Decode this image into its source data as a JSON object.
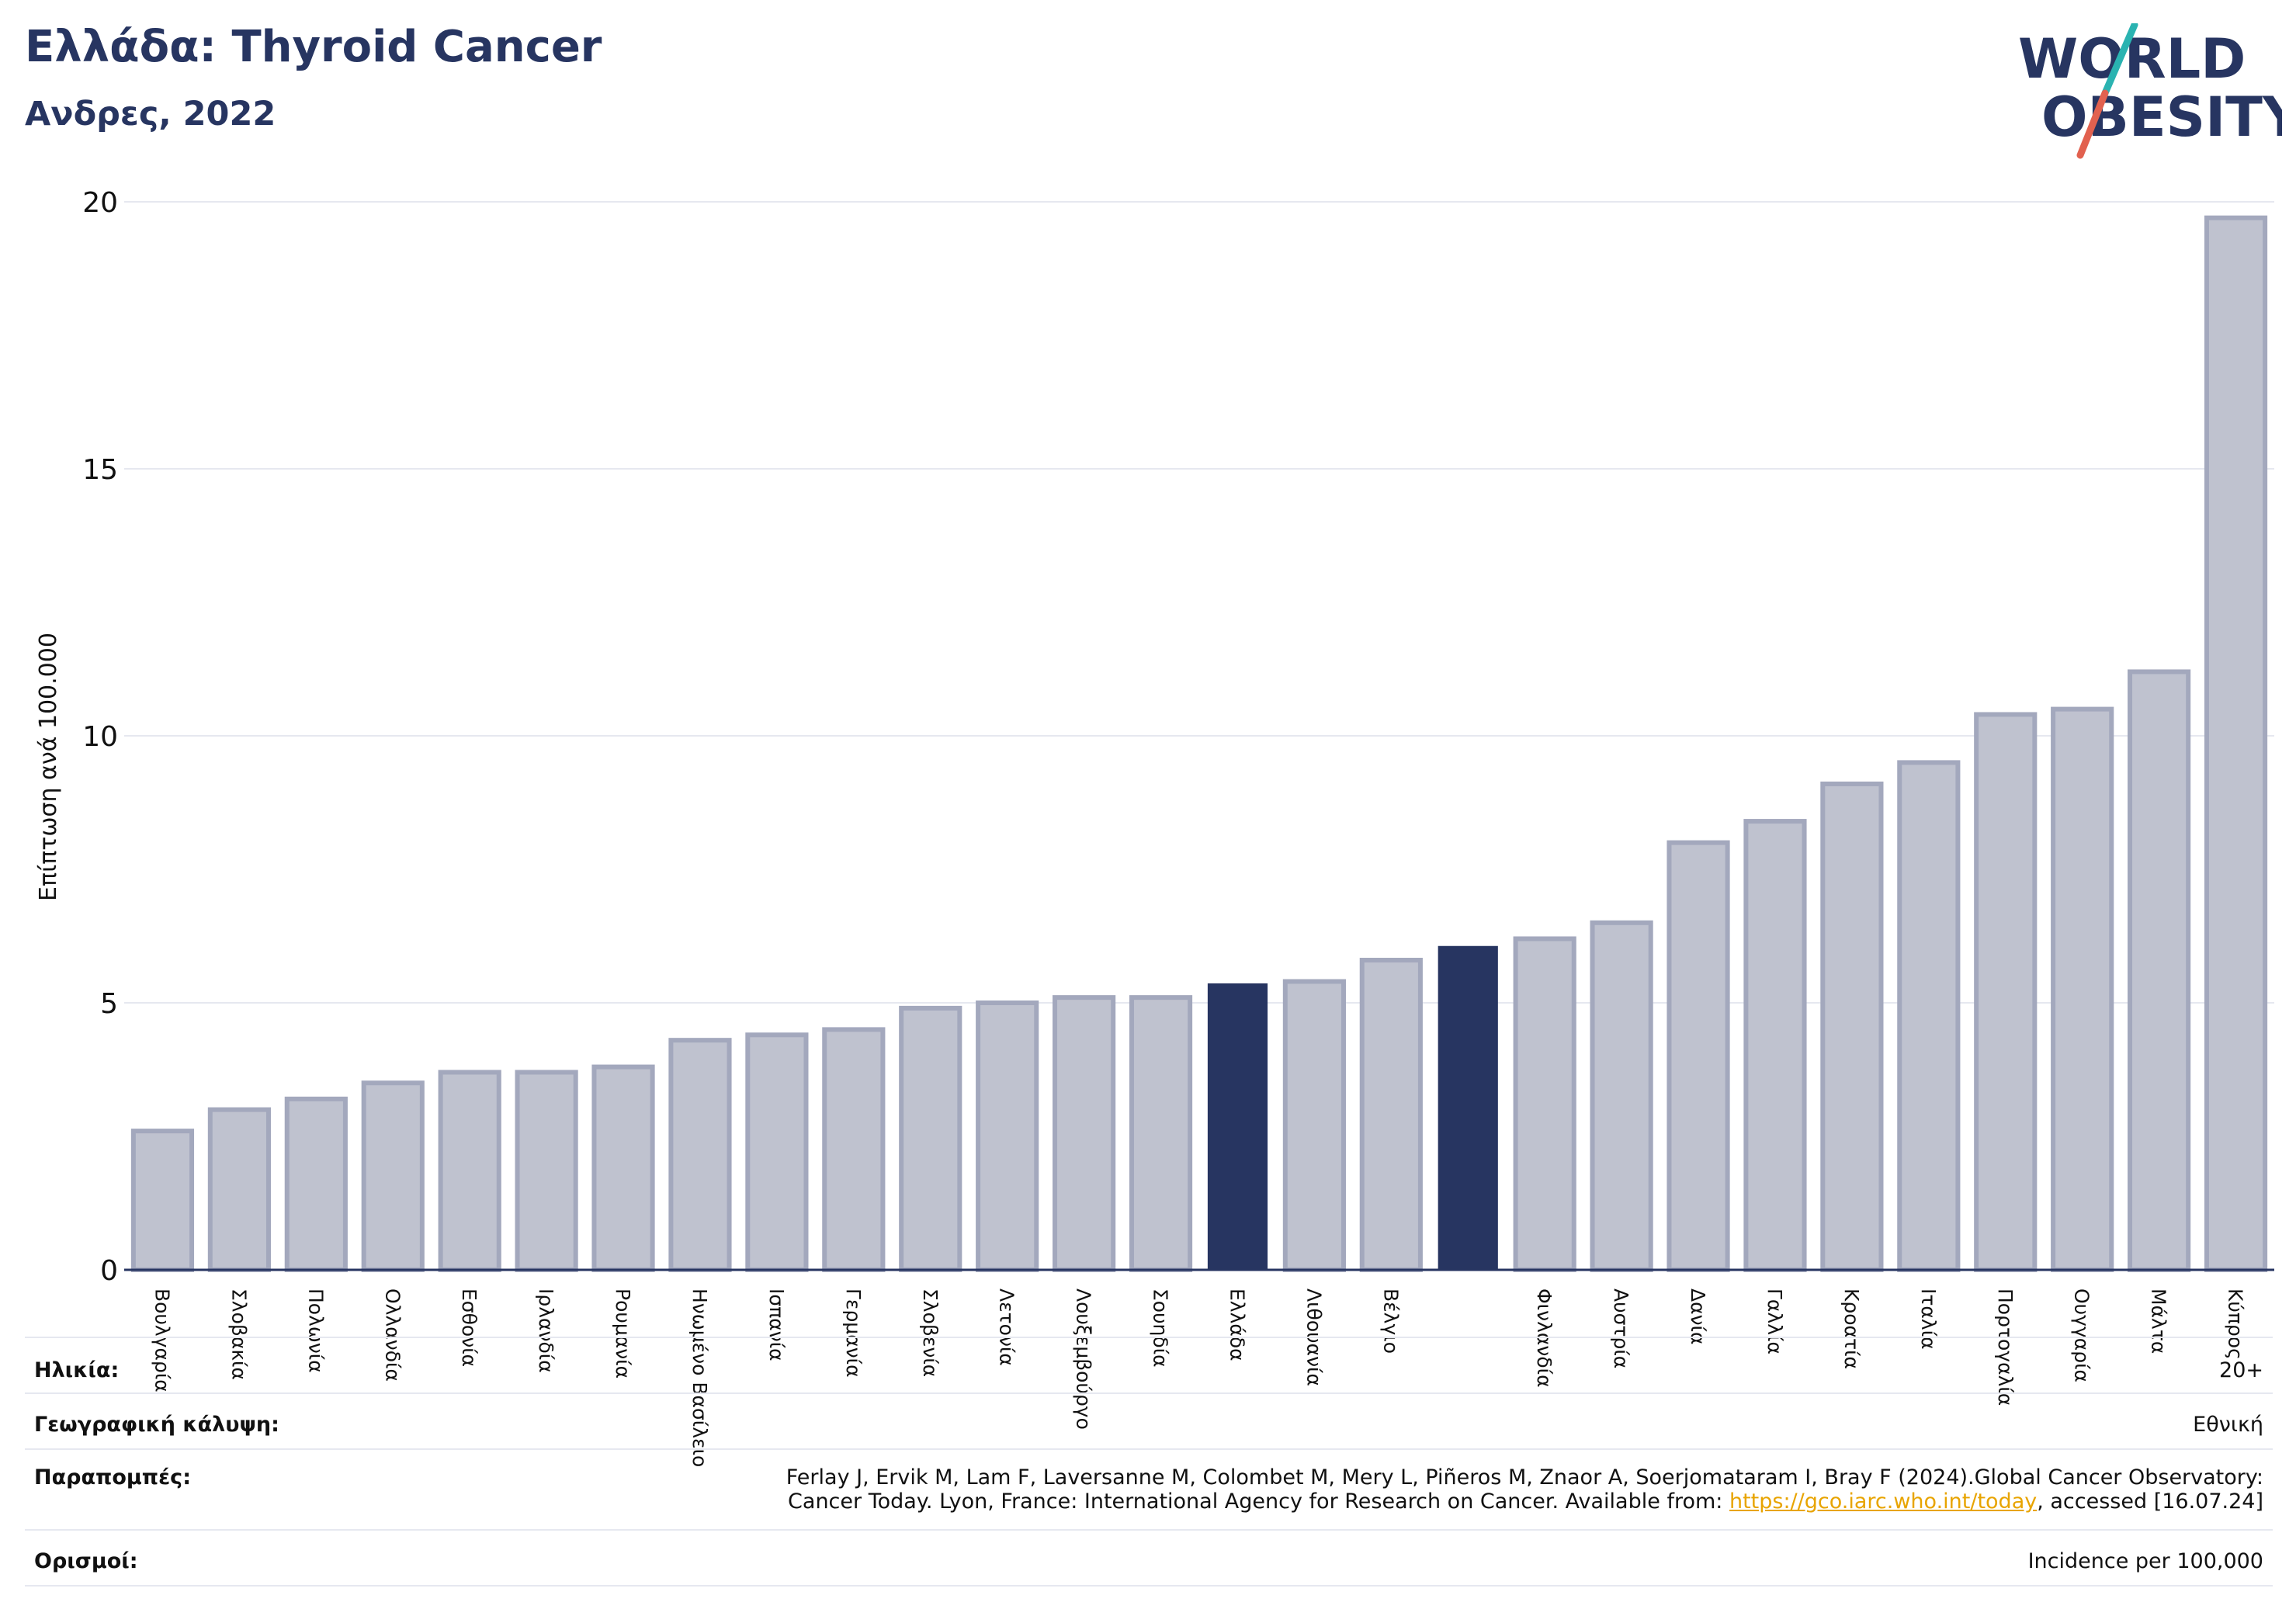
{
  "header": {
    "title": "Ελλάδα: Thyroid Cancer",
    "subtitle": "Ανδρες, 2022"
  },
  "logo": {
    "line1": "WORLD",
    "line2": "OBESITY",
    "colors": {
      "text": "#273561",
      "slash_top": "#2ab3b1",
      "slash_bottom": "#e2614f"
    }
  },
  "colors": {
    "bar_default": "#bfc2cf",
    "bar_default_border": "#a3a8bd",
    "bar_highlight": "#273561",
    "grid": "#e6e8f0",
    "axis": "#273561"
  },
  "chart_data": {
    "type": "bar",
    "ylabel": "Επίπτωση ανά 100.000",
    "xlabel": "",
    "ylim": [
      0,
      20
    ],
    "yticks": [
      0,
      5,
      10,
      15,
      20
    ],
    "grid": true,
    "categories": [
      "Βουλγαρία",
      "Σλοβακία",
      "Πολωνία",
      "Ολλανδία",
      "Εσθονία",
      "Ιρλανδία",
      "Ρουμανία",
      "Ηνωμένο Βασίλειο",
      "Ισπανία",
      "Γερμανία",
      "Σλοβενία",
      "Λετονία",
      "Λουξεμβούργο",
      "Σουηδία",
      "Ελλάδα",
      "Λιθουανία",
      "Βέλγιο",
      "",
      "Φινλανδία",
      "Αυστρία",
      "Δανία",
      "Γαλλία",
      "Κροατία",
      "Ιταλία",
      "Πορτογαλία",
      "Ουγγαρία",
      "Μάλτα",
      "Κύπρος"
    ],
    "values": [
      2.6,
      3.0,
      3.2,
      3.5,
      3.7,
      3.7,
      3.8,
      4.3,
      4.4,
      4.5,
      4.9,
      5.0,
      5.1,
      5.1,
      5.35,
      5.4,
      5.8,
      6.05,
      6.2,
      6.5,
      8.0,
      8.4,
      9.1,
      9.5,
      10.4,
      10.5,
      11.2,
      19.7
    ],
    "highlight": [
      14,
      17
    ]
  },
  "info": [
    {
      "label": "Ηλικία:",
      "value": "20+"
    },
    {
      "label": "Γεωγραφική κάλυψη:",
      "value": "Εθνική"
    },
    {
      "label": "Παραπομπές:",
      "value_line1": "Ferlay J, Ervik M, Lam F, Laversanne M, Colombet M, Mery L, Piñeros M, Znaor A, Soerjomataram I, Bray F (2024).Global Cancer Observatory:",
      "value_line2_before": "Cancer Today. Lyon, France: International Agency for Research on Cancer. Available from: ",
      "link": "https://gco.iarc.who.int/today",
      "value_line2_after": ", accessed [16.07.24]"
    },
    {
      "label": "Ορισμοί:",
      "value": "Incidence per 100,000"
    }
  ]
}
